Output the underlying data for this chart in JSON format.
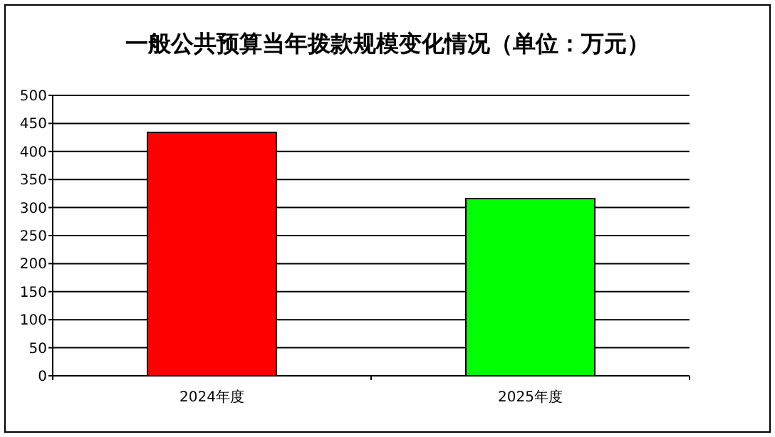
{
  "chart_data": {
    "type": "bar",
    "title": "一般公共预算当年拨款规模变化情况（单位：万元）",
    "categories": [
      "2024年度",
      "2025年度"
    ],
    "values": [
      434,
      316
    ],
    "colors": [
      "#ff0000",
      "#00ff00"
    ],
    "ylim": [
      0,
      500
    ],
    "yticks": [
      0,
      50,
      100,
      150,
      200,
      250,
      300,
      350,
      400,
      450,
      500
    ],
    "grid": "y"
  }
}
